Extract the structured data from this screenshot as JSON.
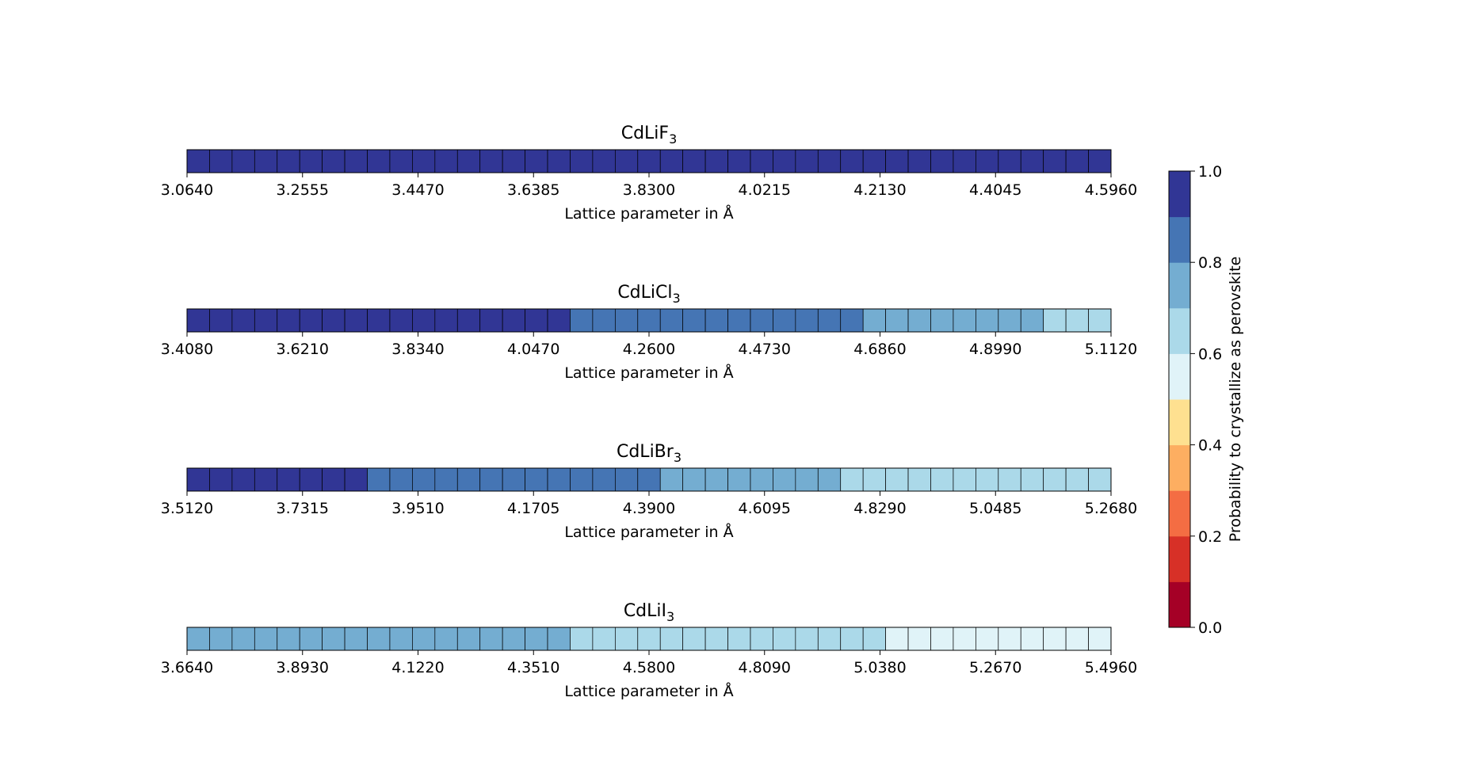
{
  "chart_data": [
    {
      "type": "heatmap",
      "title_main": "CdLiF",
      "title_sub": "3",
      "xlabel": "Lattice parameter in Å",
      "ticks": [
        "3.0640",
        "3.2555",
        "3.4470",
        "3.6385",
        "3.8300",
        "4.0215",
        "4.2130",
        "4.4045",
        "4.5960"
      ],
      "xlim": [
        3.064,
        4.596
      ],
      "values": [
        1,
        1,
        1,
        1,
        1,
        1,
        1,
        1,
        1,
        1,
        1,
        1,
        1,
        1,
        1,
        1,
        1,
        1,
        1,
        1,
        1,
        1,
        1,
        1,
        1,
        1,
        1,
        1,
        1,
        1,
        1,
        1,
        1,
        1,
        1,
        1,
        1,
        1,
        1,
        1,
        1
      ]
    },
    {
      "type": "heatmap",
      "title_main": "CdLiCl",
      "title_sub": "3",
      "xlabel": "Lattice parameter in Å",
      "ticks": [
        "3.4080",
        "3.6210",
        "3.8340",
        "4.0470",
        "4.2600",
        "4.4730",
        "4.6860",
        "4.8990",
        "5.1120"
      ],
      "xlim": [
        3.408,
        5.112
      ],
      "values": [
        1,
        1,
        1,
        1,
        1,
        1,
        1,
        1,
        1,
        1,
        1,
        1,
        1,
        1,
        1,
        1,
        1,
        0.9,
        0.9,
        0.9,
        0.9,
        0.9,
        0.9,
        0.9,
        0.9,
        0.9,
        0.9,
        0.9,
        0.9,
        0.9,
        0.8,
        0.8,
        0.8,
        0.8,
        0.8,
        0.8,
        0.8,
        0.8,
        0.7,
        0.7,
        0.7
      ]
    },
    {
      "type": "heatmap",
      "title_main": "CdLiBr",
      "title_sub": "3",
      "xlabel": "Lattice parameter in Å",
      "ticks": [
        "3.5120",
        "3.7315",
        "3.9510",
        "4.1705",
        "4.3900",
        "4.6095",
        "4.8290",
        "5.0485",
        "5.2680"
      ],
      "xlim": [
        3.512,
        5.268
      ],
      "values": [
        1,
        1,
        1,
        1,
        1,
        1,
        1,
        1,
        0.9,
        0.9,
        0.9,
        0.9,
        0.9,
        0.9,
        0.9,
        0.9,
        0.9,
        0.9,
        0.9,
        0.9,
        0.9,
        0.8,
        0.8,
        0.8,
        0.8,
        0.8,
        0.8,
        0.8,
        0.8,
        0.7,
        0.7,
        0.7,
        0.7,
        0.7,
        0.7,
        0.7,
        0.7,
        0.7,
        0.7,
        0.7,
        0.7
      ]
    },
    {
      "type": "heatmap",
      "title_main": "CdLiI",
      "title_sub": "3",
      "xlabel": "Lattice parameter in Å",
      "ticks": [
        "3.6640",
        "3.8930",
        "4.1220",
        "4.3510",
        "4.5800",
        "4.8090",
        "5.0380",
        "5.2670",
        "5.4960"
      ],
      "xlim": [
        3.664,
        5.496
      ],
      "values": [
        0.8,
        0.8,
        0.8,
        0.8,
        0.8,
        0.8,
        0.8,
        0.8,
        0.8,
        0.8,
        0.8,
        0.8,
        0.8,
        0.8,
        0.8,
        0.8,
        0.8,
        0.7,
        0.7,
        0.7,
        0.7,
        0.7,
        0.7,
        0.7,
        0.7,
        0.7,
        0.7,
        0.7,
        0.7,
        0.7,
        0.7,
        0.6,
        0.6,
        0.6,
        0.6,
        0.6,
        0.6,
        0.6,
        0.6,
        0.6,
        0.6
      ]
    }
  ],
  "colorbar": {
    "label": "Probability to crystallize as perovskite",
    "ticks": [
      "0.0",
      "0.2",
      "0.4",
      "0.6",
      "0.8",
      "1.0"
    ],
    "range": [
      0,
      1
    ],
    "bins": 10,
    "colors": [
      "#a50026",
      "#d73027",
      "#f46d43",
      "#fdae61",
      "#fee090",
      "#e0f3f8",
      "#abd9e9",
      "#74add1",
      "#4575b4",
      "#313695"
    ]
  }
}
